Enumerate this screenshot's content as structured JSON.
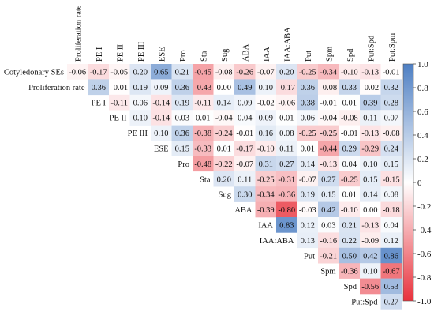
{
  "chart_data": {
    "type": "heatmap",
    "subtype": "lower-triangular correlation matrix",
    "columns": [
      "Proliferation rate",
      "PE I",
      "PE II",
      "PE III",
      "ESE",
      "Pro",
      "Sta",
      "Sug",
      "ABA",
      "IAA",
      "IAA:ABA",
      "Put",
      "Spm",
      "Spd",
      "Put:Spd",
      "Put:Spm"
    ],
    "rows": [
      "Cotyledonary SEs",
      "Proliferation rate",
      "PE I",
      "PE II",
      "PE III",
      "ESE",
      "Pro",
      "Sta",
      "Sug",
      "ABA",
      "IAA",
      "IAA:ABA",
      "Put",
      "Spm",
      "Spd",
      "Put:Spd"
    ],
    "values": [
      [
        -0.06,
        -0.17,
        -0.05,
        0.2,
        0.65,
        0.21,
        -0.45,
        -0.08,
        -0.26,
        -0.07,
        0.2,
        -0.25,
        -0.34,
        -0.1,
        -0.13,
        -0.01
      ],
      [
        null,
        0.36,
        -0.01,
        0.19,
        0.09,
        0.36,
        -0.43,
        0.0,
        0.49,
        0.1,
        -0.17,
        0.36,
        -0.08,
        0.33,
        -0.02,
        0.32
      ],
      [
        null,
        null,
        -0.11,
        0.06,
        -0.14,
        0.19,
        -0.11,
        0.14,
        0.09,
        -0.02,
        -0.06,
        0.38,
        -0.01,
        0.01,
        0.39,
        0.28
      ],
      [
        null,
        null,
        null,
        0.1,
        -0.14,
        0.03,
        0.01,
        -0.04,
        0.04,
        0.09,
        0.01,
        0.06,
        -0.04,
        -0.08,
        0.11,
        0.07
      ],
      [
        null,
        null,
        null,
        null,
        0.1,
        0.36,
        -0.38,
        -0.24,
        -0.01,
        0.16,
        0.08,
        -0.25,
        -0.25,
        -0.01,
        -0.13,
        -0.08
      ],
      [
        null,
        null,
        null,
        null,
        null,
        0.15,
        -0.33,
        0.01,
        -0.17,
        -0.1,
        0.11,
        0.01,
        -0.44,
        0.29,
        -0.29,
        0.24
      ],
      [
        null,
        null,
        null,
        null,
        null,
        null,
        -0.48,
        -0.22,
        -0.07,
        0.31,
        0.27,
        0.14,
        -0.13,
        0.04,
        0.1,
        0.15
      ],
      [
        null,
        null,
        null,
        null,
        null,
        null,
        null,
        0.2,
        0.11,
        -0.25,
        -0.31,
        -0.07,
        0.27,
        -0.25,
        0.15,
        -0.15
      ],
      [
        null,
        null,
        null,
        null,
        null,
        null,
        null,
        null,
        0.3,
        -0.34,
        -0.36,
        0.19,
        0.15,
        0.01,
        0.14,
        0.08
      ],
      [
        null,
        null,
        null,
        null,
        null,
        null,
        null,
        null,
        null,
        -0.39,
        -0.8,
        -0.03,
        0.42,
        -0.1,
        0.0,
        -0.18
      ],
      [
        null,
        null,
        null,
        null,
        null,
        null,
        null,
        null,
        null,
        null,
        0.83,
        0.12,
        0.03,
        0.21,
        -0.13,
        0.04
      ],
      [
        null,
        null,
        null,
        null,
        null,
        null,
        null,
        null,
        null,
        null,
        null,
        0.13,
        -0.16,
        0.22,
        -0.09,
        0.12
      ],
      [
        null,
        null,
        null,
        null,
        null,
        null,
        null,
        null,
        null,
        null,
        null,
        null,
        -0.21,
        0.5,
        0.42,
        0.86
      ],
      [
        null,
        null,
        null,
        null,
        null,
        null,
        null,
        null,
        null,
        null,
        null,
        null,
        null,
        -0.36,
        0.1,
        -0.67
      ],
      [
        null,
        null,
        null,
        null,
        null,
        null,
        null,
        null,
        null,
        null,
        null,
        null,
        null,
        null,
        -0.56,
        0.53
      ],
      [
        null,
        null,
        null,
        null,
        null,
        null,
        null,
        null,
        null,
        null,
        null,
        null,
        null,
        null,
        null,
        0.27
      ]
    ],
    "colorbar": {
      "ticks": [
        "1.0",
        "0.8",
        "0.6",
        "0.4",
        "0.2",
        "0",
        "-0.2",
        "-0.4",
        "-0.6",
        "-0.8",
        "-1.0"
      ],
      "range": [
        -1.0,
        1.0
      ]
    },
    "colors": {
      "positive": "#4e7fc3",
      "negative": "#e8323c",
      "neutral": "#ffffff"
    }
  }
}
